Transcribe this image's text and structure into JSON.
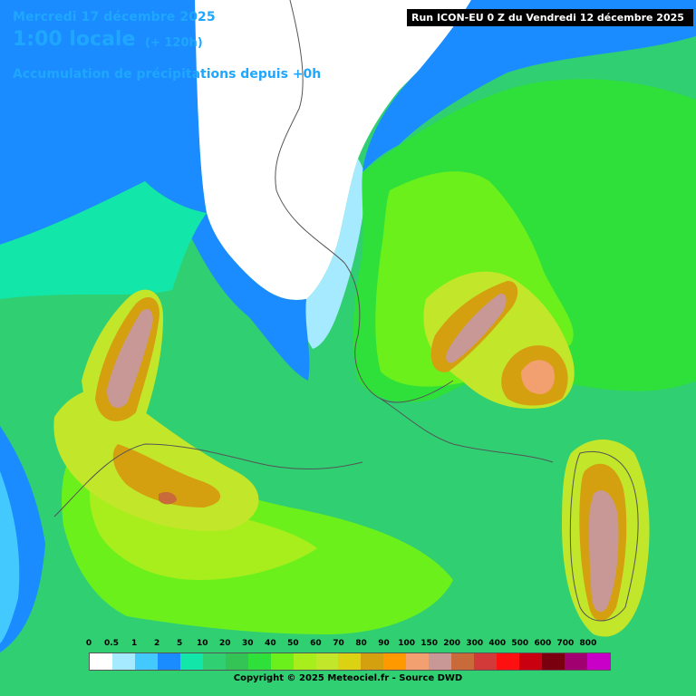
{
  "header": {
    "date": "Mercredi 17 décembre 2025",
    "time": "1:00 locale",
    "offset": "(+ 120h)",
    "field": "Accumulation de précipitations depuis +0h",
    "run": "Run ICON-EU 0 Z du Vendredi 12 décembre 2025"
  },
  "legend": {
    "labels": [
      "0",
      "0.5",
      "1",
      "2",
      "5",
      "10",
      "20",
      "30",
      "40",
      "50",
      "60",
      "70",
      "80",
      "90",
      "100",
      "150",
      "200",
      "300",
      "400",
      "500",
      "600",
      "700",
      "800"
    ],
    "colors": [
      "#ffffff",
      "#a6eaff",
      "#44c9ff",
      "#1a8cff",
      "#12e6a8",
      "#2fcf72",
      "#33c455",
      "#2fe03a",
      "#6cf01c",
      "#a8ee1c",
      "#c2e62a",
      "#dcd214",
      "#d4a010",
      "#ff9900",
      "#f2a070",
      "#c79896",
      "#c86a3a",
      "#d23a3a",
      "#ff1010",
      "#c80010",
      "#7a0010",
      "#a00070",
      "#c800c8"
    ]
  },
  "copyright": "Copyright © 2025 Meteociel.fr - Source DWD"
}
